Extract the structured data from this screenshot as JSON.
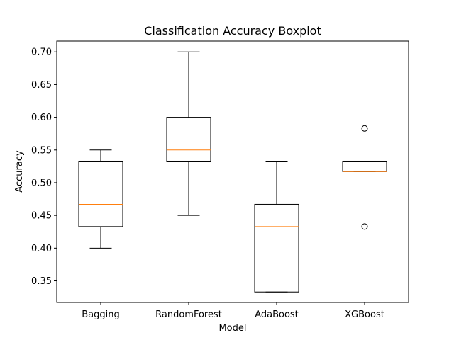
{
  "chart_data": {
    "type": "boxplot",
    "title": "Classification Accuracy Boxplot",
    "xlabel": "Model",
    "ylabel": "Accuracy",
    "ylim": [
      0.317,
      0.7165
    ],
    "yticks": [
      "0.35",
      "0.40",
      "0.45",
      "0.50",
      "0.55",
      "0.60",
      "0.65",
      "0.70"
    ],
    "grid": false,
    "categories": [
      "Bagging",
      "RandomForest",
      "AdaBoost",
      "XGBoost"
    ],
    "boxes": [
      {
        "category": "Bagging",
        "whisker_low": 0.4,
        "q1": 0.433,
        "median": 0.467,
        "q3": 0.533,
        "whisker_high": 0.55,
        "outliers": []
      },
      {
        "category": "RandomForest",
        "whisker_low": 0.45,
        "q1": 0.533,
        "median": 0.55,
        "q3": 0.6,
        "whisker_high": 0.7,
        "outliers": []
      },
      {
        "category": "AdaBoost",
        "whisker_low": 0.333,
        "q1": 0.333,
        "median": 0.433,
        "q3": 0.467,
        "whisker_high": 0.533,
        "outliers": []
      },
      {
        "category": "XGBoost",
        "whisker_low": 0.517,
        "q1": 0.517,
        "median": 0.517,
        "q3": 0.533,
        "whisker_high": 0.533,
        "outliers": [
          0.433,
          0.583
        ]
      }
    ],
    "colors": {
      "box": "#000000",
      "median": "#ff7f0e",
      "axes": "#000000"
    }
  }
}
